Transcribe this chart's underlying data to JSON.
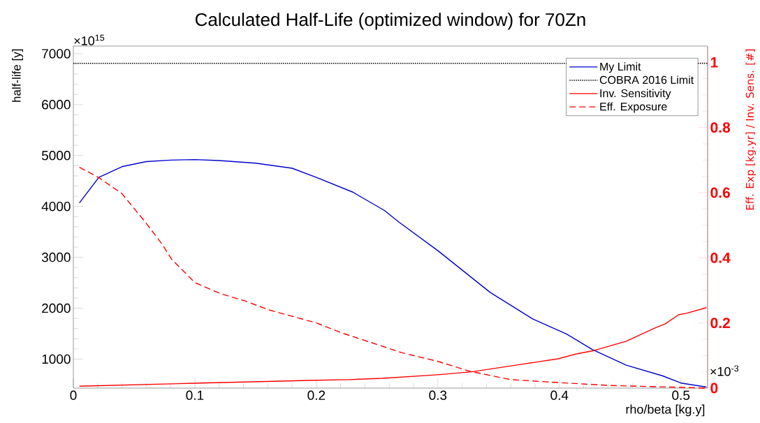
{
  "chart_data": {
    "type": "line",
    "title": "Calculated Half-Life (optimized window) for 70Zn",
    "xlabel": "rho/beta [kg.y]",
    "ylabel": "half-life [y]",
    "y2label": "Eff. Exp [kg.yr] / Inv. Sens. [#]",
    "annotations": [
      "×10$^{15}$",
      "×10$^{-3}$"
    ],
    "xlim": [
      0,
      0.522
    ],
    "xticks": [
      0,
      0.1,
      0.2,
      0.3,
      0.4,
      0.5
    ],
    "ylim": [
      430,
      7150
    ],
    "yticks": [
      1000,
      2000,
      3000,
      4000,
      5000,
      6000,
      7000
    ],
    "y2lim": [
      0,
      1.05
    ],
    "y2ticks": [
      0,
      0.2,
      0.4,
      0.6,
      0.8,
      1
    ],
    "grid": false,
    "legend": "top right",
    "marker": "none",
    "series": [
      {
        "name": "My Limit",
        "color": "#0000cc",
        "line_style": "solid",
        "x": [
          0.005,
          0.021,
          0.04,
          0.06,
          0.08,
          0.1,
          0.12,
          0.15,
          0.18,
          0.2,
          0.23,
          0.256,
          0.268,
          0.3,
          0.343,
          0.378,
          0.406,
          0.427,
          0.455,
          0.485,
          0.5,
          0.521
        ],
        "values": [
          4070,
          4570,
          4780,
          4880,
          4910,
          4920,
          4900,
          4850,
          4750,
          4570,
          4280,
          3920,
          3690,
          3130,
          2310,
          1790,
          1490,
          1190,
          880,
          670,
          530,
          450
        ]
      },
      {
        "name": "COBRA 2016 Limit",
        "color": "#000000",
        "line_style": "dotted",
        "x": [
          0,
          0.522
        ],
        "values": [
          6810,
          6810
        ]
      },
      {
        "name": "Inv. Sensitivity",
        "color": "#ff0000",
        "line_style": "solid",
        "axis": "y2",
        "x": [
          0.005,
          0.1,
          0.2,
          0.227,
          0.254,
          0.3,
          0.328,
          0.369,
          0.399,
          0.414,
          0.427,
          0.455,
          0.479,
          0.487,
          0.498,
          0.505,
          0.521
        ],
        "values": [
          0.006,
          0.015,
          0.024,
          0.026,
          0.03,
          0.041,
          0.05,
          0.073,
          0.09,
          0.105,
          0.114,
          0.144,
          0.185,
          0.197,
          0.225,
          0.23,
          0.247
        ]
      },
      {
        "name": "Eff. Exposure",
        "color": "#ff0000",
        "line_style": "dashed",
        "axis": "y2",
        "x": [
          0.005,
          0.021,
          0.04,
          0.06,
          0.073,
          0.081,
          0.1,
          0.121,
          0.141,
          0.161,
          0.2,
          0.222,
          0.254,
          0.27,
          0.3,
          0.326,
          0.36,
          0.399,
          0.442,
          0.521
        ],
        "values": [
          0.678,
          0.646,
          0.597,
          0.506,
          0.442,
          0.395,
          0.324,
          0.29,
          0.268,
          0.24,
          0.2,
          0.168,
          0.129,
          0.109,
          0.082,
          0.052,
          0.026,
          0.017,
          0.008,
          0
        ]
      }
    ]
  }
}
